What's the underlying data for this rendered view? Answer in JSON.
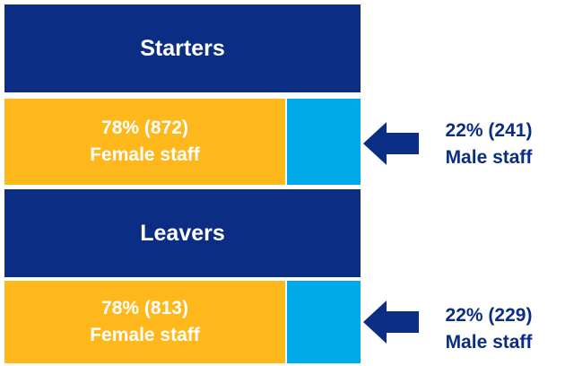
{
  "sections": [
    {
      "title": "Starters",
      "female": {
        "figure": "78% (872)",
        "label": "Female staff"
      },
      "male": {
        "figure": "22% (241)",
        "label": "Male staff"
      }
    },
    {
      "title": "Leavers",
      "female": {
        "figure": "78% (813)",
        "label": "Female staff"
      },
      "male": {
        "figure": "22% (229)",
        "label": "Male staff"
      }
    }
  ]
}
